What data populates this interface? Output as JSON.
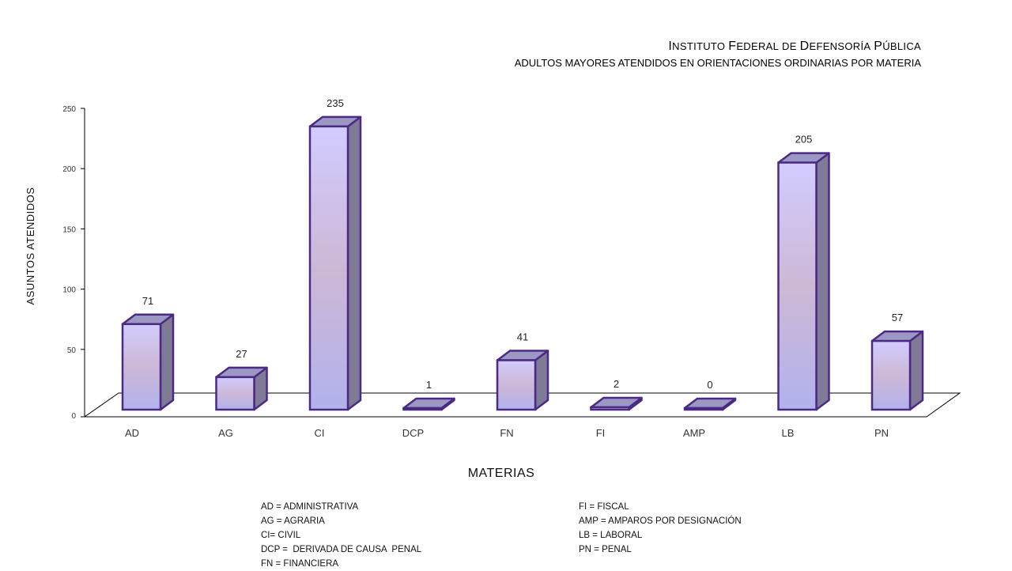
{
  "chart_data": {
    "type": "bar",
    "title_parts": [
      {
        "cap": "I",
        "rest": "NSTITUTO "
      },
      {
        "cap": "F",
        "rest": "EDERAL DE "
      },
      {
        "cap": "D",
        "rest": "EFENSORÍA "
      },
      {
        "cap": "P",
        "rest": "ÚBLICA"
      }
    ],
    "subtitle": "ADULTOS MAYORES ATENDIDOS EN ORIENTACIONES ORDINARIAS POR MATERIA",
    "xlabel": "MATERIAS",
    "ylabel": "ASUNTOS ATENDIDOS",
    "categories": [
      "AD",
      "AG",
      "CI",
      "DCP",
      "FN",
      "FI",
      "AMP",
      "LB",
      "PN"
    ],
    "values": [
      71,
      27,
      235,
      1,
      41,
      2,
      0,
      205,
      57
    ],
    "data_labels": [
      "71",
      "27",
      "235",
      "1",
      "41",
      "2",
      "0",
      "205",
      "57"
    ],
    "ylim": [
      0,
      250
    ],
    "yticks": [
      "0",
      "50",
      "100",
      "150",
      "200",
      "250"
    ],
    "colors": {
      "bar_outline": "#4b2a86",
      "bar_front_top": "#d2ccff",
      "bar_front_mid": "#cdb8d6",
      "bar_front_bottom": "#b2b2ec",
      "bar_side": "#7f7a96",
      "bar_top": "#9c98c4",
      "axis": "#000000"
    },
    "grid": false,
    "legend_left": [
      "AD = ADMINISTRATIVA",
      "AG = AGRARIA",
      "CI= CIVIL",
      "DCP =  DERIVADA DE CAUSA  PENAL",
      "FN = FINANCIERA"
    ],
    "legend_right": [
      "FI = FISCAL",
      "AMP = AMPAROS POR DESIGNACIÓN",
      "LB = LABORAL",
      "PN = PENAL"
    ]
  }
}
